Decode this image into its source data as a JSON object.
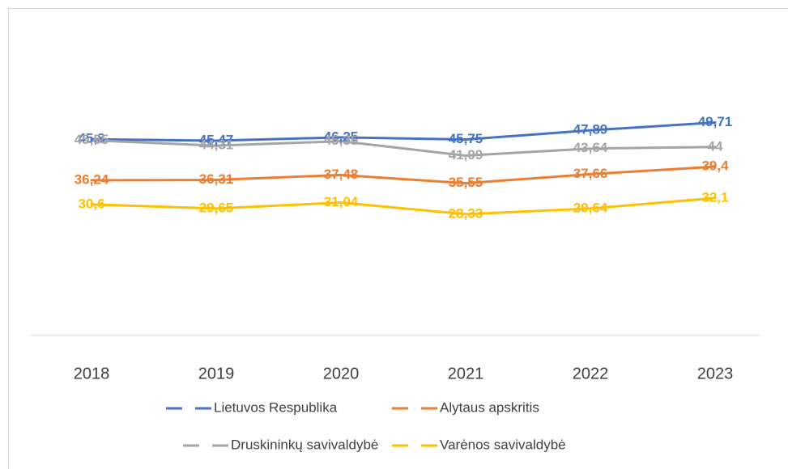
{
  "chart_data": {
    "type": "line",
    "categories": [
      "2018",
      "2019",
      "2020",
      "2021",
      "2022",
      "2023"
    ],
    "ylim": [
      0,
      60
    ],
    "series": [
      {
        "name": "Lietuvos Respublika",
        "color": "#4472c4",
        "values": [
          45.8,
          45.47,
          46.25,
          45.75,
          47.89,
          49.71
        ],
        "value_labels": [
          "45,8",
          "45,47",
          "46,25",
          "45,75",
          "47,89",
          "49,71"
        ]
      },
      {
        "name": "Alytaus apskritis",
        "color": "#ed7d31",
        "values": [
          36.24,
          36.31,
          37.48,
          35.55,
          37.66,
          39.4
        ],
        "value_labels": [
          "36,24",
          "36,31",
          "37,48",
          "35,55",
          "37,66",
          "39,4"
        ]
      },
      {
        "name": "Druskininkų savivaldybė",
        "color": "#a5a5a5",
        "values": [
          45.55,
          44.31,
          45.35,
          41.99,
          43.64,
          44
        ],
        "value_labels": [
          "45,55",
          "44,31",
          "45,35",
          "41,99",
          "43,64",
          "44"
        ]
      },
      {
        "name": "Varėnos savivaldybė",
        "color": "#ffc000",
        "values": [
          30.6,
          29.65,
          31.04,
          28.33,
          29.64,
          32.1
        ],
        "value_labels": [
          "30,6",
          "29,65",
          "31,04",
          "28,33",
          "29,64",
          "32,1"
        ]
      }
    ]
  }
}
